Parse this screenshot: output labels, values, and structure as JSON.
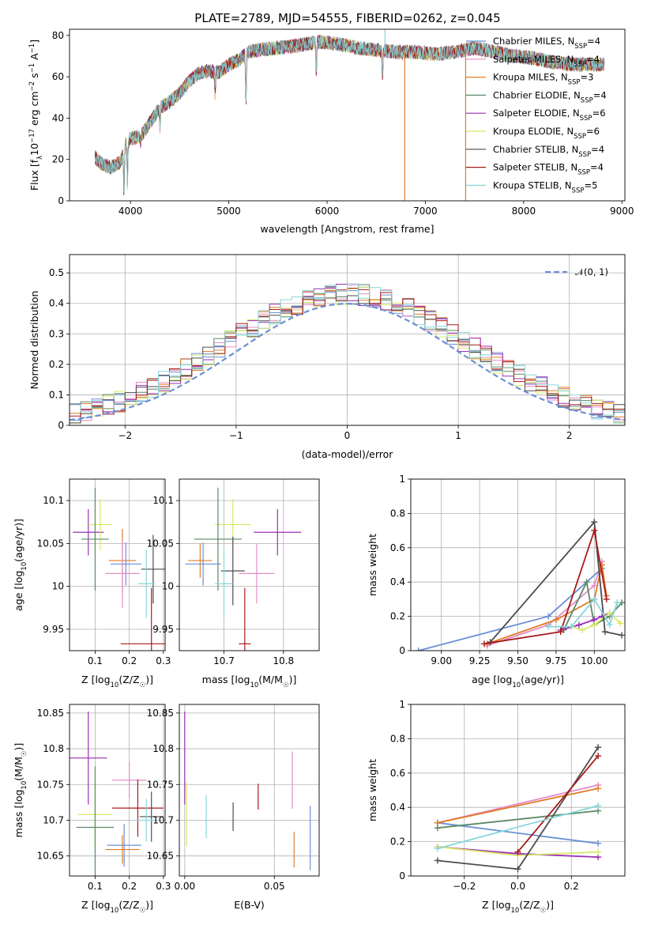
{
  "figure": {
    "title": "PLATE=2789, MJD=54555, FIBERID=0262, z=0.045"
  },
  "models": [
    {
      "name": "Chabrier MILES",
      "nssp": "4",
      "color": "#6b8fd6"
    },
    {
      "name": "Salpeter MILES",
      "nssp": "4",
      "color": "#e58cc7"
    },
    {
      "name": "Kroupa MILES",
      "nssp": "3",
      "color": "#e07b26"
    },
    {
      "name": "Chabrier ELODIE",
      "nssp": "4",
      "color": "#5a8a66"
    },
    {
      "name": "Salpeter ELODIE",
      "nssp": "6",
      "color": "#9b2fb4"
    },
    {
      "name": "Kroupa ELODIE",
      "nssp": "6",
      "color": "#d9e86a"
    },
    {
      "name": "Chabrier STELIB",
      "nssp": "4",
      "color": "#4d4d4d"
    },
    {
      "name": "Salpeter STELIB",
      "nssp": "4",
      "color": "#a81a1a"
    },
    {
      "name": "Kroupa STELIB",
      "nssp": "5",
      "color": "#87d6d9"
    }
  ],
  "legend_nssp_prefix": "N",
  "legend_nssp_sub": "SSP",
  "chart_data": [
    {
      "id": "spectrum",
      "type": "line",
      "xlabel": "wavelength [Angstrom, rest frame]",
      "ylabel": "Flux [f_λ10^-17 erg cm^-2 s^-1 A^-1]",
      "xlim": [
        3380,
        9030
      ],
      "ylim": [
        0,
        83
      ],
      "xticks": [
        4000,
        5000,
        6000,
        7000,
        8000,
        9000
      ],
      "yticks": [
        0,
        20,
        40,
        60,
        80
      ],
      "legend": "right",
      "continuum": {
        "x": [
          3640,
          3700,
          3800,
          3900,
          3950,
          4000,
          4100,
          4200,
          4300,
          4400,
          4500,
          4600,
          4700,
          4800,
          4900,
          5000,
          5100,
          5200,
          5300,
          5500,
          5700,
          5900,
          6100,
          6300,
          6500,
          6700,
          6900,
          7100,
          7300,
          7500,
          7700,
          7900,
          8100,
          8300,
          8500,
          8700,
          8820
        ],
        "y": [
          21,
          18,
          16,
          19,
          27,
          30,
          31,
          38,
          45,
          48,
          52,
          58,
          62,
          63,
          62,
          66,
          68,
          72,
          73,
          74,
          75,
          77,
          76,
          74,
          73,
          72,
          72,
          71,
          72,
          74,
          72,
          70,
          69,
          67,
          66,
          66,
          66
        ]
      },
      "absorption": [
        {
          "x": 3934,
          "y": 4
        },
        {
          "x": 3969,
          "y": 8
        },
        {
          "x": 4102,
          "y": 28
        },
        {
          "x": 4300,
          "y": 36
        },
        {
          "x": 4861,
          "y": 52
        },
        {
          "x": 5175,
          "y": 48
        },
        {
          "x": 5890,
          "y": 62
        },
        {
          "x": 6563,
          "y": 60
        }
      ],
      "spikes": [
        {
          "x": 6790,
          "y": 0,
          "color": "#e07b26"
        },
        {
          "x": 7410,
          "y": 0,
          "color": "#e07b26"
        },
        {
          "x": 6590,
          "y": 83,
          "color": "#87d6d9"
        }
      ]
    },
    {
      "id": "residuals",
      "type": "line",
      "xlabel": "(data-model)/error",
      "ylabel": "Normed distribution",
      "xlim": [
        -2.5,
        2.5
      ],
      "ylim": [
        0,
        0.56
      ],
      "xticks": [
        -2,
        -1,
        0,
        1,
        2
      ],
      "yticks": [
        0,
        0.1,
        0.2,
        0.3,
        0.4,
        0.5
      ],
      "grid": true,
      "legend": "top-right",
      "normal_label": "𝒩(0, 1)",
      "normal_color": "#6b8fd6"
    },
    {
      "id": "age-vs-Z",
      "type": "scatter",
      "xlabel": "Z [log₁₀(Z/Z☉)]",
      "ylabel": "age  [log₁₀(age/yr)]",
      "xlim": [
        0.025,
        0.305
      ],
      "ylim": [
        9.925,
        10.125
      ],
      "xticks": [
        0.1,
        0.2,
        0.3
      ],
      "yticks": [
        9.95,
        10.0,
        10.05,
        10.1
      ],
      "grid": true,
      "points": [
        {
          "model": 4,
          "x": 0.08,
          "xe": 0.045,
          "y": 10.063,
          "ye": 0.027
        },
        {
          "model": 5,
          "x": 0.115,
          "xe": 0.035,
          "y": 10.072,
          "ye": 0.03
        },
        {
          "model": 3,
          "x": 0.1,
          "xe": 0.04,
          "y": 10.055,
          "ye": 0.06
        },
        {
          "model": 2,
          "x": 0.18,
          "xe": 0.04,
          "y": 10.03,
          "ye": 0.037
        },
        {
          "model": 0,
          "x": 0.19,
          "xe": 0.045,
          "y": 10.026,
          "ye": 0.025
        },
        {
          "model": 1,
          "x": 0.18,
          "xe": 0.05,
          "y": 10.015,
          "ye": 0.04
        },
        {
          "model": 6,
          "x": 0.27,
          "xe": 0.035,
          "y": 10.02,
          "ye": 0.04
        },
        {
          "model": 8,
          "x": 0.25,
          "xe": 0.025,
          "y": 10.003,
          "ye": 0.04
        },
        {
          "model": 7,
          "x": 0.265,
          "xe": 0.09,
          "y": 9.933,
          "ye": 0.065
        }
      ]
    },
    {
      "id": "age-vs-mass",
      "type": "scatter",
      "xlabel": "mass [log₁₀(M/M☉)]",
      "ylabel": "",
      "xlim": [
        10.625,
        10.86
      ],
      "ylim": [
        9.925,
        10.125
      ],
      "xticks": [
        10.7,
        10.8
      ],
      "yticks": [
        9.95,
        10.0,
        10.05,
        10.1
      ],
      "grid": true,
      "points": [
        {
          "model": 4,
          "x": 10.79,
          "xe": 0.04,
          "y": 10.063,
          "ye": 0.027
        },
        {
          "model": 5,
          "x": 10.715,
          "xe": 0.03,
          "y": 10.072,
          "ye": 0.03
        },
        {
          "model": 3,
          "x": 10.69,
          "xe": 0.04,
          "y": 10.055,
          "ye": 0.06
        },
        {
          "model": 2,
          "x": 10.66,
          "xe": 0.02,
          "y": 10.03,
          "ye": 0.02
        },
        {
          "model": 0,
          "x": 10.665,
          "xe": 0.03,
          "y": 10.026,
          "ye": 0.025
        },
        {
          "model": 1,
          "x": 10.755,
          "xe": 0.03,
          "y": 10.015,
          "ye": 0.035
        },
        {
          "model": 6,
          "x": 10.715,
          "xe": 0.02,
          "y": 10.018,
          "ye": 0.04
        },
        {
          "model": 8,
          "x": 10.7,
          "xe": 0.015,
          "y": 10.003,
          "ye": 0.04
        },
        {
          "model": 7,
          "x": 10.735,
          "xe": 0.01,
          "y": 9.933,
          "ye": 0.065
        }
      ]
    },
    {
      "id": "massweight-vs-age",
      "type": "line",
      "xlabel": "age  [log₁₀(age/yr)]",
      "ylabel": "mass weight",
      "xlim": [
        8.8,
        10.2
      ],
      "ylim": [
        0,
        1
      ],
      "xticks": [
        9.0,
        9.25,
        9.5,
        9.75,
        10.0
      ],
      "xticklabels": [
        "9.00",
        "9.25",
        "9.50",
        "9.75",
        "10.00"
      ],
      "yticks": [
        0,
        0.2,
        0.4,
        0.6,
        0.8,
        1.0
      ],
      "grid": true,
      "series": [
        {
          "model": 0,
          "x": [
            8.85,
            9.7,
            10.05
          ],
          "y": [
            0.0,
            0.2,
            0.48
          ]
        },
        {
          "model": 1,
          "x": [
            9.3,
            9.7,
            10.0,
            10.05
          ],
          "y": [
            0.03,
            0.15,
            0.38,
            0.52
          ]
        },
        {
          "model": 2,
          "x": [
            9.3,
            9.75,
            10.0,
            10.05,
            10.08
          ],
          "y": [
            0.04,
            0.18,
            0.3,
            0.5,
            0.32
          ]
        },
        {
          "model": 3,
          "x": [
            9.8,
            9.95,
            10.0,
            10.1,
            10.18
          ],
          "y": [
            0.12,
            0.4,
            0.15,
            0.2,
            0.28
          ]
        },
        {
          "model": 4,
          "x": [
            9.78,
            9.9,
            10.0,
            10.05,
            10.1
          ],
          "y": [
            0.12,
            0.15,
            0.18,
            0.2,
            0.22
          ]
        },
        {
          "model": 5,
          "x": [
            9.85,
            9.92,
            10.0,
            10.1,
            10.17
          ],
          "y": [
            0.14,
            0.12,
            0.15,
            0.22,
            0.16
          ]
        },
        {
          "model": 6,
          "x": [
            9.32,
            10.0,
            10.07,
            10.18
          ],
          "y": [
            0.05,
            0.75,
            0.11,
            0.09
          ]
        },
        {
          "model": 7,
          "x": [
            9.28,
            9.78,
            10.0,
            10.08
          ],
          "y": [
            0.04,
            0.11,
            0.7,
            0.3
          ]
        },
        {
          "model": 8,
          "x": [
            9.7,
            9.85,
            10.0,
            10.1,
            10.15
          ],
          "y": [
            0.14,
            0.14,
            0.3,
            0.15,
            0.28
          ]
        }
      ]
    },
    {
      "id": "mass-vs-Z",
      "type": "scatter",
      "xlabel": "Z [log₁₀(Z/Z☉)]",
      "ylabel": "mass [log₁₀(M/M☉)]",
      "xlim": [
        0.025,
        0.305
      ],
      "ylim": [
        10.622,
        10.862
      ],
      "xticks": [
        0.1,
        0.2,
        0.3
      ],
      "yticks": [
        10.65,
        10.7,
        10.75,
        10.8,
        10.85
      ],
      "grid": true,
      "points": [
        {
          "model": 4,
          "x": 0.08,
          "xe": 0.055,
          "y": 10.787,
          "ye": 0.065
        },
        {
          "model": 1,
          "x": 0.2,
          "xe": 0.05,
          "y": 10.756,
          "ye": 0.025
        },
        {
          "model": 7,
          "x": 0.225,
          "xe": 0.075,
          "y": 10.717,
          "ye": 0.04
        },
        {
          "model": 5,
          "x": 0.1,
          "xe": 0.05,
          "y": 10.708,
          "ye": 0.045
        },
        {
          "model": 6,
          "x": 0.265,
          "xe": 0.035,
          "y": 10.705,
          "ye": 0.035
        },
        {
          "model": 8,
          "x": 0.25,
          "xe": 0.03,
          "y": 10.7,
          "ye": 0.03
        },
        {
          "model": 3,
          "x": 0.1,
          "xe": 0.055,
          "y": 10.69,
          "ye": 0.085
        },
        {
          "model": 0,
          "x": 0.185,
          "xe": 0.05,
          "y": 10.665,
          "ye": 0.03
        },
        {
          "model": 2,
          "x": 0.18,
          "xe": 0.05,
          "y": 10.659,
          "ye": 0.02
        }
      ]
    },
    {
      "id": "mass-vs-ebv",
      "type": "scatter",
      "xlabel": "E(B-V)",
      "ylabel": "",
      "xlim": [
        -0.003,
        0.075
      ],
      "ylim": [
        10.622,
        10.862
      ],
      "xticks": [
        0.0,
        0.05
      ],
      "xticklabels": [
        "0.00",
        "0.05"
      ],
      "yticks": [
        10.65,
        10.7,
        10.75,
        10.8,
        10.85
      ],
      "grid": true,
      "points": [
        {
          "model": 4,
          "x": 0.0,
          "xe": 0.0,
          "y": 10.787,
          "ye": 0.065
        },
        {
          "model": 5,
          "x": 0.001,
          "xe": 0.0,
          "y": 10.708,
          "ye": 0.045
        },
        {
          "model": 8,
          "x": 0.012,
          "xe": 0.0,
          "y": 10.705,
          "ye": 0.03
        },
        {
          "model": 6,
          "x": 0.027,
          "xe": 0.0,
          "y": 10.705,
          "ye": 0.02
        },
        {
          "model": 7,
          "x": 0.041,
          "xe": 0.0,
          "y": 10.733,
          "ye": 0.018
        },
        {
          "model": 1,
          "x": 0.06,
          "xe": 0.0,
          "y": 10.756,
          "ye": 0.04
        },
        {
          "model": 2,
          "x": 0.061,
          "xe": 0.0,
          "y": 10.659,
          "ye": 0.025
        },
        {
          "model": 0,
          "x": 0.07,
          "xe": 0.0,
          "y": 10.675,
          "ye": 0.045
        }
      ]
    },
    {
      "id": "massweight-vs-Z",
      "type": "line",
      "xlabel": "Z [log₁₀(Z/Z☉)]",
      "ylabel": "mass weight",
      "xlim": [
        -0.4,
        0.4
      ],
      "ylim": [
        0,
        1
      ],
      "xticks": [
        -0.2,
        0.0,
        0.2
      ],
      "xticklabels": [
        "−0.2",
        "0.0",
        "0.2"
      ],
      "yticks": [
        0,
        0.2,
        0.4,
        0.6,
        0.8,
        1.0
      ],
      "grid": true,
      "series": [
        {
          "model": 0,
          "x": [
            -0.3,
            0.3
          ],
          "y": [
            0.31,
            0.19
          ]
        },
        {
          "model": 1,
          "x": [
            -0.3,
            0.3
          ],
          "y": [
            0.31,
            0.53
          ]
        },
        {
          "model": 2,
          "x": [
            -0.3,
            0.3
          ],
          "y": [
            0.31,
            0.51
          ]
        },
        {
          "model": 3,
          "x": [
            -0.3,
            0.3
          ],
          "y": [
            0.28,
            0.38
          ]
        },
        {
          "model": 4,
          "x": [
            -0.3,
            0.0,
            0.3
          ],
          "y": [
            0.17,
            0.13,
            0.11
          ]
        },
        {
          "model": 5,
          "x": [
            -0.3,
            0.0,
            0.3
          ],
          "y": [
            0.17,
            0.12,
            0.14
          ]
        },
        {
          "model": 6,
          "x": [
            -0.3,
            0.0,
            0.3
          ],
          "y": [
            0.09,
            0.04,
            0.75
          ]
        },
        {
          "model": 7,
          "x": [
            0.0,
            0.3
          ],
          "y": [
            0.14,
            0.7
          ]
        },
        {
          "model": 8,
          "x": [
            -0.3,
            0.3
          ],
          "y": [
            0.16,
            0.41
          ]
        }
      ]
    }
  ]
}
